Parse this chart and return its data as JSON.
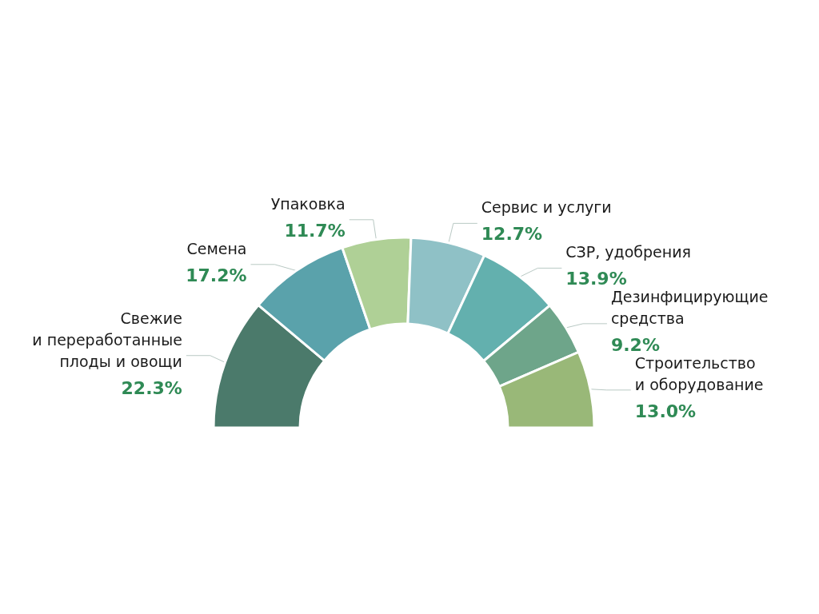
{
  "chart_data": {
    "type": "donut",
    "categories": [
      "Свежие\nи переработанные\nплоды и овощи",
      "Семена",
      "Упаковка",
      "Сервис и услуги",
      "СЗР, удобрения",
      "Дезинфицирующие\nсредства",
      "Строительство\nи оборудование"
    ],
    "values": [
      22.3,
      17.2,
      11.7,
      12.7,
      13.9,
      9.2,
      13.0
    ],
    "value_labels": [
      "22.3%",
      "17.2%",
      "11.7%",
      "12.7%",
      "13.9%",
      "9.2%",
      "13.0%"
    ],
    "colors": [
      "#4b7a6b",
      "#5aa2ab",
      "#afd096",
      "#8fc1c6",
      "#63b0ae",
      "#6ea58a",
      "#99b878"
    ],
    "legend": false
  }
}
